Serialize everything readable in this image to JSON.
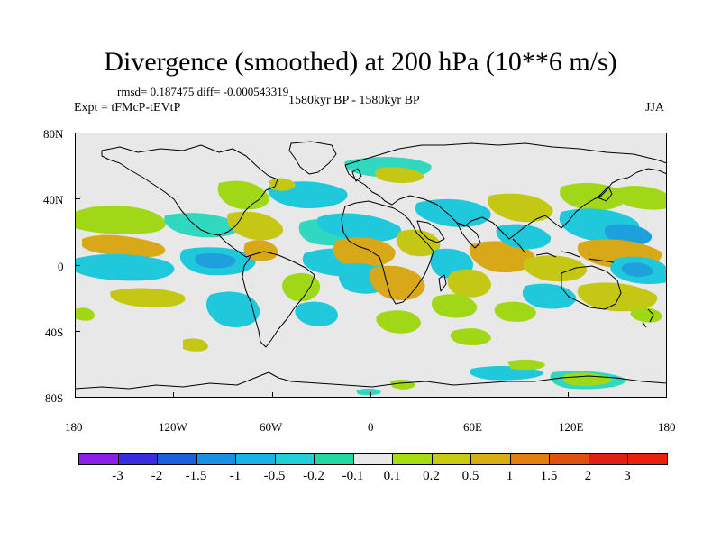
{
  "title": "Divergence (smoothed) at 200 hPa (10**6 m/s)",
  "stats": "rmsd= 0.187475 diff= -0.000543319",
  "expt": "Expt = tFMcP-tEVtP",
  "period": "1580kyr BP - 1580kyr BP",
  "season": "JJA",
  "axes": {
    "y_labels": [
      "80N",
      "40N",
      "0",
      "40S",
      "80S"
    ],
    "x_labels": [
      "180",
      "120W",
      "60W",
      "0",
      "60E",
      "120E",
      "180"
    ]
  },
  "colorbar": {
    "labels": [
      "-3",
      "-2",
      "-1.5",
      "-1",
      "-0.5",
      "-0.2",
      "-0.1",
      "0.1",
      "0.2",
      "0.5",
      "1",
      "1.5",
      "2",
      "3"
    ],
    "colors": [
      "#8b1fe8",
      "#3a2de0",
      "#1a60d8",
      "#1b8fe0",
      "#1ab3e6",
      "#1fd0d8",
      "#20d8a0",
      "#e8e8e8",
      "#a6dc10",
      "#c8cc10",
      "#d8ae10",
      "#e08010",
      "#e05010",
      "#e02010",
      "#e8200c"
    ]
  },
  "map_colors": {
    "background": "#e8e8e8",
    "green": "#a0d818",
    "yellowgreen": "#c4c814",
    "orange": "#d8a818",
    "cyan": "#20c8dc",
    "cyan_light": "#30d8c0",
    "blue": "#1ea0dc"
  }
}
